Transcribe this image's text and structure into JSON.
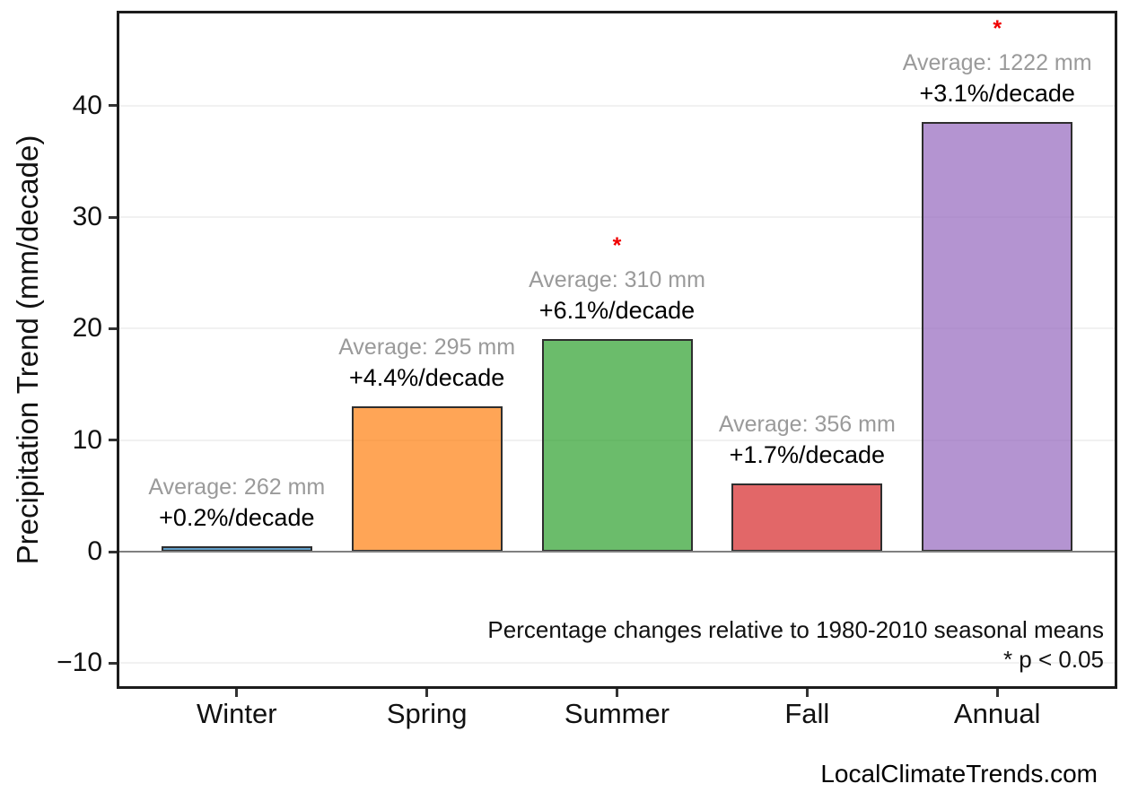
{
  "chart_data": {
    "type": "bar",
    "title": "",
    "xlabel": "",
    "ylabel": "Precipitation Trend (mm/decade)",
    "ylim": [
      -12.3,
      48.5
    ],
    "yticks": [
      40,
      30,
      20,
      10,
      0,
      -10
    ],
    "grid": "horizontal light-gray lines, gray zero line, legend none",
    "categories": [
      "Winter",
      "Spring",
      "Summer",
      "Fall",
      "Annual"
    ],
    "values": [
      0.5,
      13.0,
      19.1,
      6.1,
      38.5
    ],
    "bars": [
      {
        "category": "Winter",
        "value": 0.5,
        "average_label": "Average: 262 mm",
        "trend_label": "+0.2%/decade",
        "significant": false,
        "color": "#1F77B4"
      },
      {
        "category": "Spring",
        "value": 13.0,
        "average_label": "Average: 295 mm",
        "trend_label": "+4.4%/decade",
        "significant": false,
        "color": "#FF7F0E"
      },
      {
        "category": "Summer",
        "value": 19.1,
        "average_label": "Average: 310 mm",
        "trend_label": "+6.1%/decade",
        "significant": true,
        "color": "#2CA02C"
      },
      {
        "category": "Fall",
        "value": 6.1,
        "average_label": "Average: 356 mm",
        "trend_label": "+1.7%/decade",
        "significant": false,
        "color": "#D62728"
      },
      {
        "category": "Annual",
        "value": 38.5,
        "average_label": "Average: 1222 mm",
        "trend_label": "+3.1%/decade",
        "significant": true,
        "color": "#9467BD"
      }
    ],
    "fill_alpha": 0.7,
    "significance_marker": "*",
    "significance_color": "#F00000",
    "annotations": {
      "note_line1": "Percentage changes relative to 1980-2010 seasonal means",
      "note_line2": "* p < 0.05"
    }
  },
  "footer": {
    "watermark": "LocalClimateTrends.com"
  }
}
